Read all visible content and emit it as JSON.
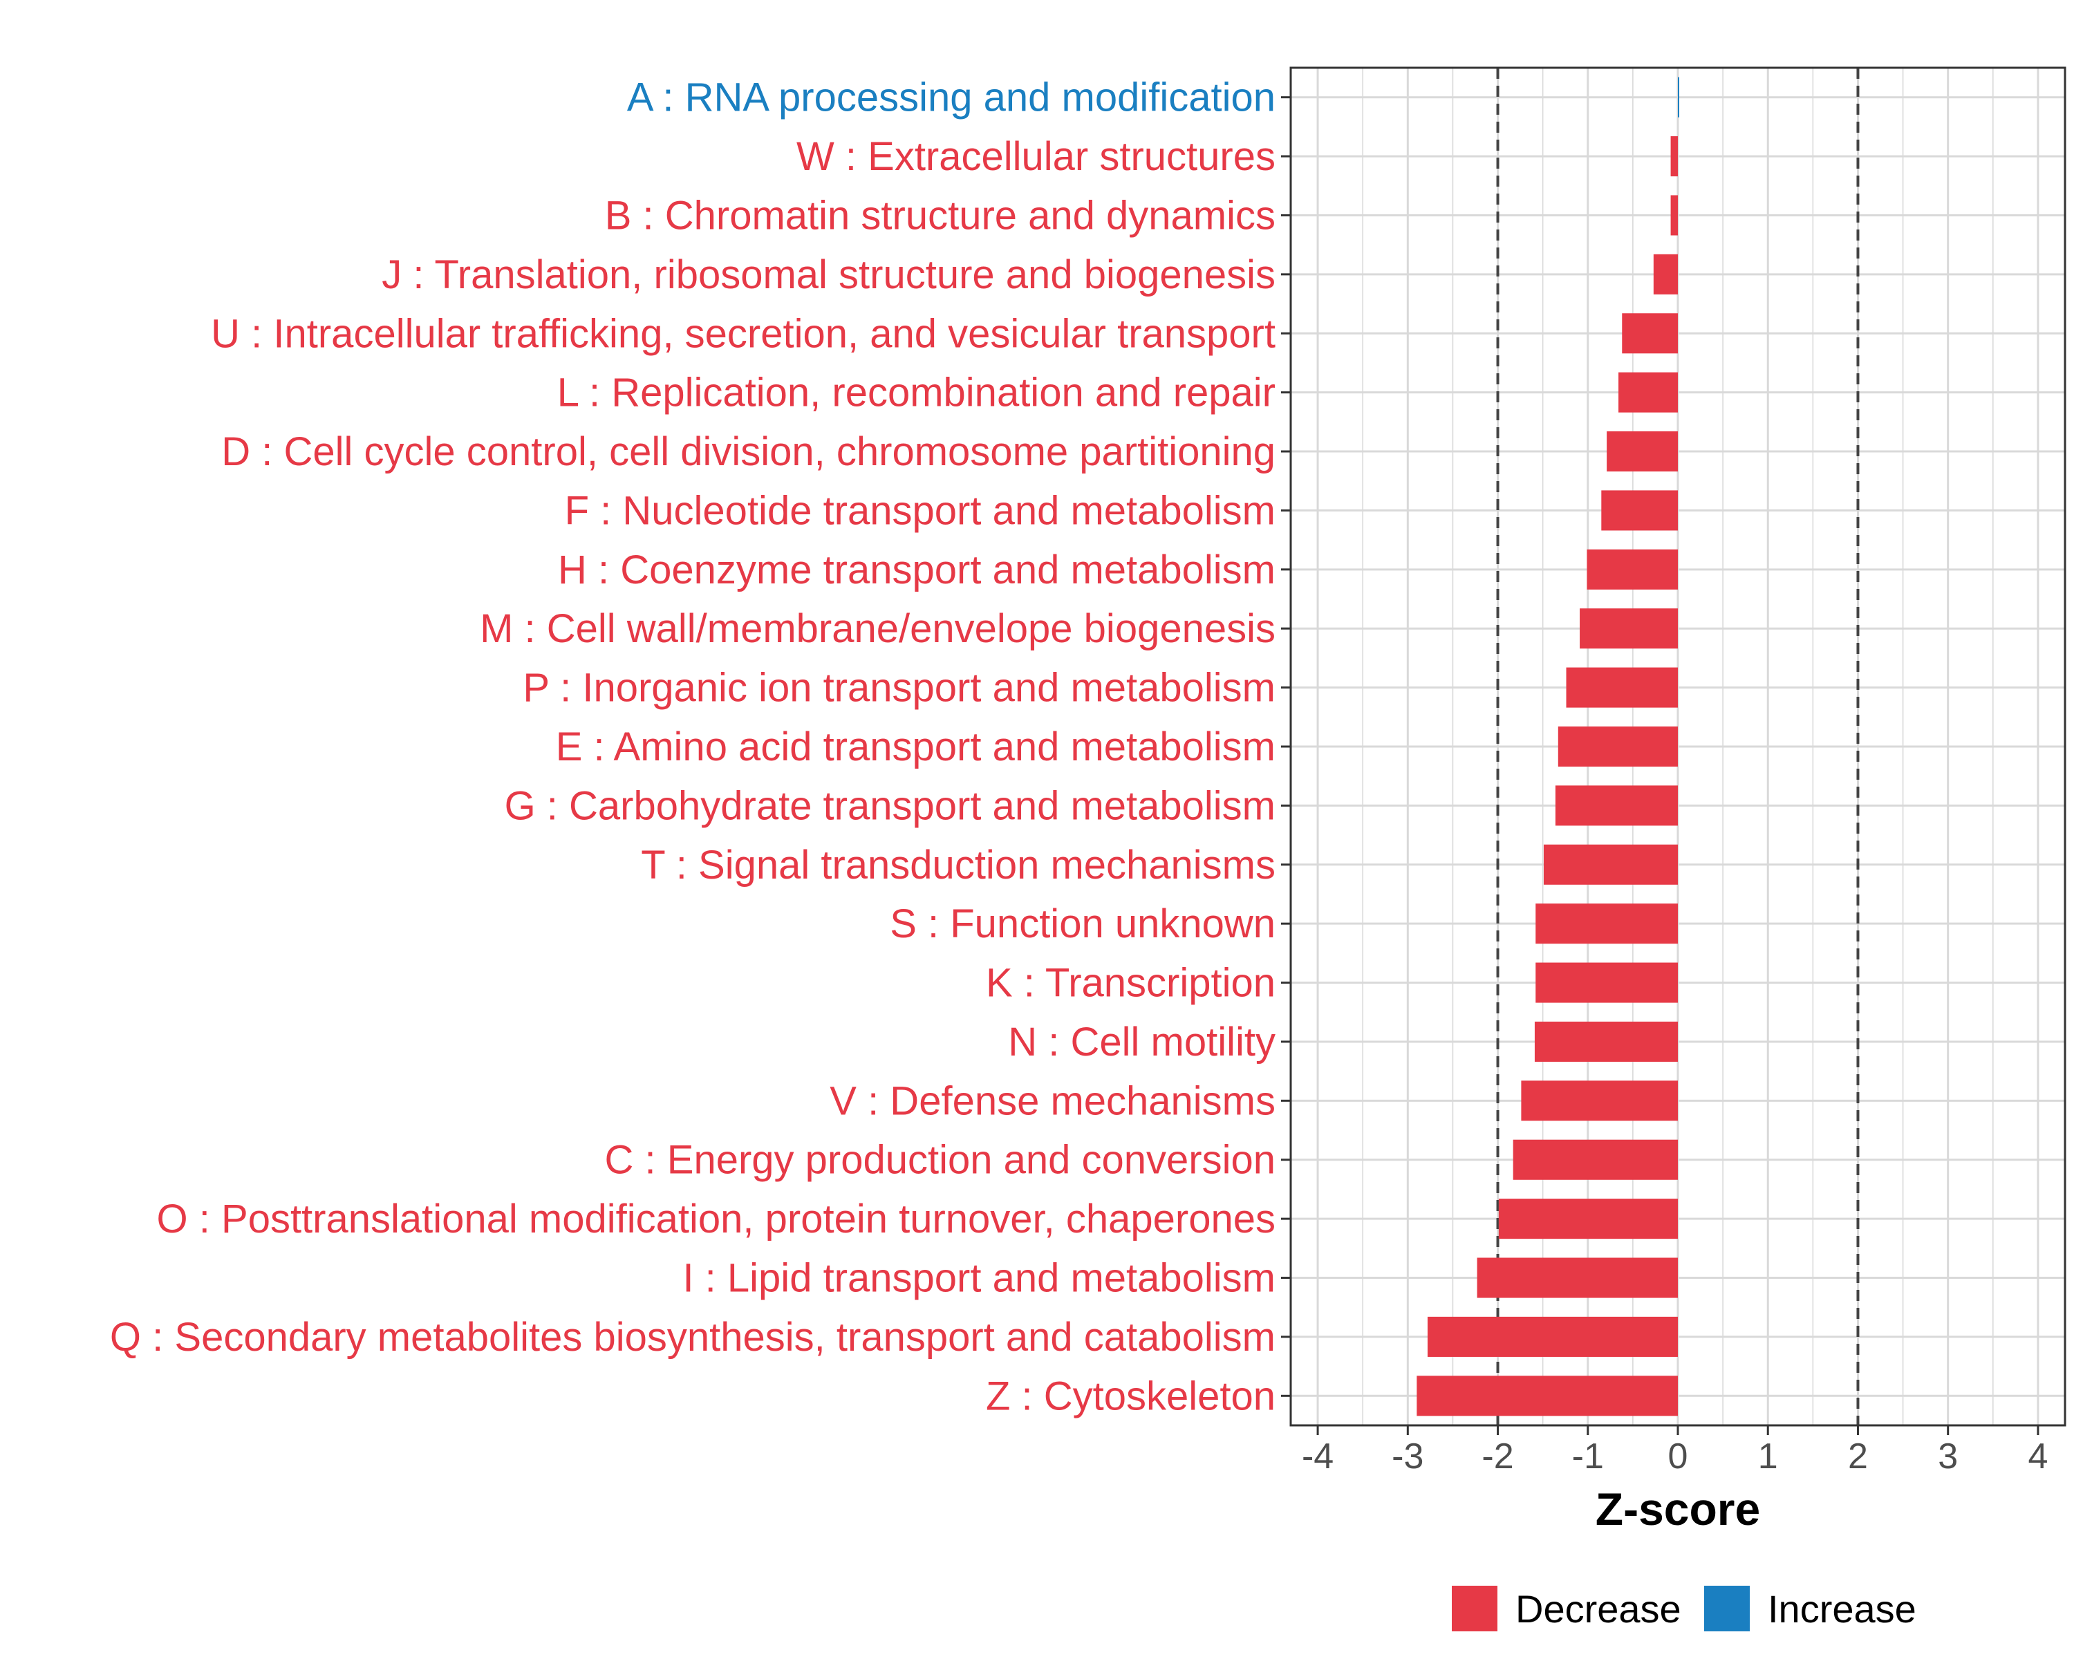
{
  "colors": {
    "decrease": "#e63946",
    "increase": "#1a7fc1"
  },
  "chart_data": {
    "type": "bar",
    "orientation": "horizontal",
    "xlabel": "Z-score",
    "xlim": [
      -4.3,
      4.3
    ],
    "xticks": [
      -4,
      -3,
      -2,
      -1,
      0,
      1,
      2,
      3,
      4
    ],
    "xtick_labels": [
      "-4",
      "-3",
      "-2",
      "-1",
      "0",
      "1",
      "2",
      "3",
      "4"
    ],
    "reference_lines": [
      -2,
      2
    ],
    "grid": true,
    "legend_position": "bottom",
    "legend": [
      {
        "label": "Decrease",
        "color": "#e63946"
      },
      {
        "label": "Increase",
        "color": "#1a7fc1"
      }
    ],
    "categories": [
      "A : RNA processing and modification",
      "W : Extracellular structures",
      "B : Chromatin structure and dynamics",
      "J : Translation, ribosomal structure and biogenesis",
      "U : Intracellular trafficking, secretion, and vesicular transport",
      "L : Replication, recombination and repair",
      "D : Cell cycle control, cell division, chromosome partitioning",
      "F : Nucleotide transport and metabolism",
      "H : Coenzyme transport and metabolism",
      "M : Cell wall/membrane/envelope biogenesis",
      "P : Inorganic ion transport and metabolism",
      "E : Amino acid transport and metabolism",
      "G : Carbohydrate transport and metabolism",
      "T : Signal transduction mechanisms",
      "S : Function unknown",
      "K : Transcription",
      "N : Cell motility",
      "V : Defense mechanisms",
      "C : Energy production and conversion",
      "O : Posttranslational modification, protein turnover, chaperones",
      "I : Lipid transport and metabolism",
      "Q : Secondary metabolites biosynthesis, transport and catabolism",
      "Z : Cytoskeleton"
    ],
    "values": [
      0.01,
      -0.08,
      -0.08,
      -0.27,
      -0.62,
      -0.66,
      -0.79,
      -0.85,
      -1.01,
      -1.09,
      -1.24,
      -1.33,
      -1.36,
      -1.49,
      -1.58,
      -1.58,
      -1.59,
      -1.74,
      -1.83,
      -1.99,
      -2.23,
      -2.78,
      -2.9
    ],
    "direction": [
      "Increase",
      "Decrease",
      "Decrease",
      "Decrease",
      "Decrease",
      "Decrease",
      "Decrease",
      "Decrease",
      "Decrease",
      "Decrease",
      "Decrease",
      "Decrease",
      "Decrease",
      "Decrease",
      "Decrease",
      "Decrease",
      "Decrease",
      "Decrease",
      "Decrease",
      "Decrease",
      "Decrease",
      "Decrease",
      "Decrease"
    ]
  }
}
